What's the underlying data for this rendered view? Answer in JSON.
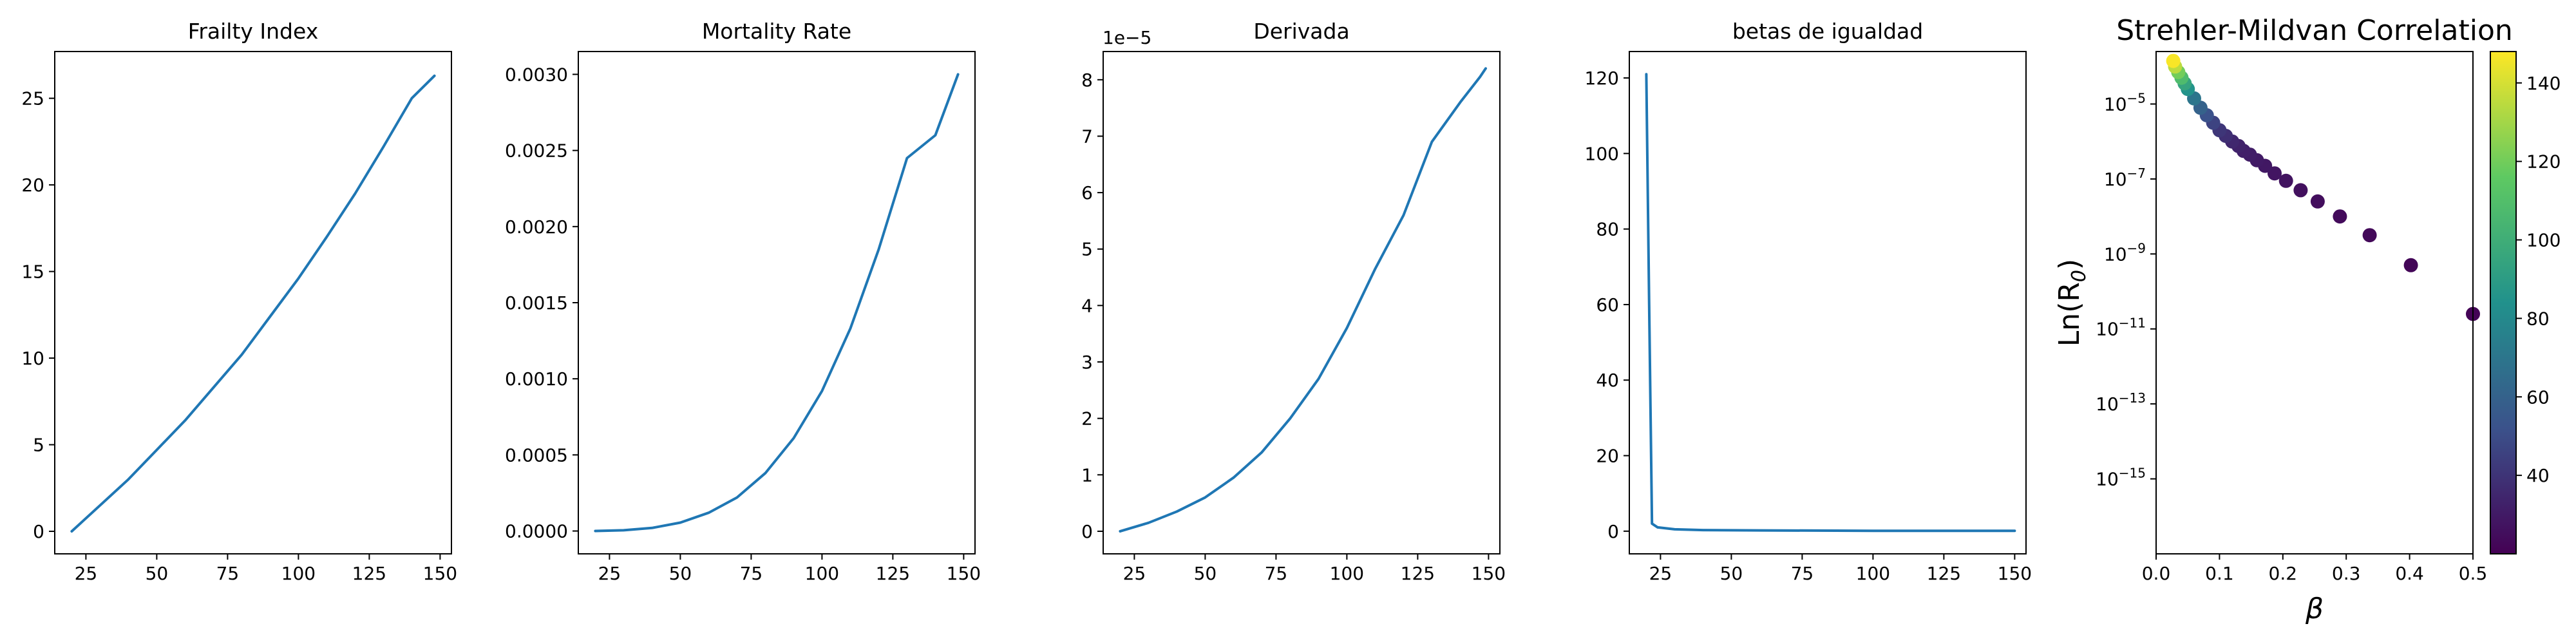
{
  "colors": {
    "line": "#1f77b4",
    "axis": "#000000",
    "background": "#ffffff"
  },
  "chart_data": [
    {
      "type": "line",
      "title": "Frailty Index",
      "xlim": [
        14,
        154
      ],
      "ylim": [
        -1.3,
        27.7
      ],
      "xticks": [
        25,
        50,
        75,
        100,
        125,
        150
      ],
      "yticks": [
        0,
        5,
        10,
        15,
        20,
        25
      ],
      "ytick_labels": [
        "0",
        "5",
        "10",
        "15",
        "20",
        "25"
      ],
      "series": [
        {
          "x": [
            20,
            30,
            40,
            50,
            60,
            70,
            80,
            90,
            100,
            110,
            120,
            130,
            140,
            148
          ],
          "y": [
            0,
            1.5,
            3.0,
            4.7,
            6.4,
            8.3,
            10.2,
            12.4,
            14.6,
            17.0,
            19.5,
            22.2,
            25.0,
            26.3
          ]
        }
      ]
    },
    {
      "type": "line",
      "title": "Mortality Rate",
      "xlim": [
        14,
        154
      ],
      "ylim": [
        -0.00015,
        0.00315
      ],
      "xticks": [
        25,
        50,
        75,
        100,
        125,
        150
      ],
      "yticks": [
        0,
        0.0005,
        0.001,
        0.0015,
        0.002,
        0.0025,
        0.003
      ],
      "ytick_labels": [
        "0.0000",
        "0.0005",
        "0.0010",
        "0.0015",
        "0.0020",
        "0.0025",
        "0.0030"
      ],
      "series": [
        {
          "x": [
            20,
            30,
            40,
            50,
            60,
            70,
            80,
            90,
            100,
            110,
            120,
            130,
            140,
            148
          ],
          "y": [
            0,
            5e-06,
            2e-05,
            5.5e-05,
            0.00012,
            0.00022,
            0.00038,
            0.00061,
            0.00092,
            0.00133,
            0.00185,
            0.00245,
            0.0026,
            0.003
          ]
        }
      ]
    },
    {
      "type": "line",
      "title": "Derivada",
      "offset_label": "1e−5",
      "xlim": [
        14,
        154
      ],
      "ylim": [
        -0.4,
        8.5
      ],
      "xticks": [
        25,
        50,
        75,
        100,
        125,
        150
      ],
      "yticks": [
        0,
        1,
        2,
        3,
        4,
        5,
        6,
        7,
        8
      ],
      "ytick_labels": [
        "0",
        "1",
        "2",
        "3",
        "4",
        "5",
        "6",
        "7",
        "8"
      ],
      "series": [
        {
          "x": [
            20,
            30,
            40,
            50,
            60,
            70,
            80,
            90,
            100,
            110,
            120,
            130,
            140,
            147,
            149
          ],
          "y": [
            0,
            0.15,
            0.35,
            0.6,
            0.95,
            1.4,
            2.0,
            2.7,
            3.6,
            4.65,
            5.6,
            6.9,
            7.6,
            8.05,
            8.2
          ]
        }
      ]
    },
    {
      "type": "line",
      "title": "betas de igualdad",
      "xlim": [
        14,
        154
      ],
      "ylim": [
        -6,
        127
      ],
      "xticks": [
        25,
        50,
        75,
        100,
        125,
        150
      ],
      "yticks": [
        0,
        20,
        40,
        60,
        80,
        100,
        120
      ],
      "ytick_labels": [
        "0",
        "20",
        "40",
        "60",
        "80",
        "100",
        "120"
      ],
      "series": [
        {
          "x": [
            20,
            21,
            22,
            24,
            30,
            40,
            60,
            100,
            150
          ],
          "y": [
            121,
            60,
            2,
            1,
            0.5,
            0.3,
            0.2,
            0.1,
            0.1
          ]
        }
      ]
    },
    {
      "type": "scatter",
      "title": "Strehler-Mildvan Correlation",
      "xlabel": "β",
      "ylabel_base": "Ln(R",
      "ylabel_sub": "0",
      "ylabel_end": ")",
      "xlim": [
        0,
        0.5
      ],
      "ylog": true,
      "ylim_exp": [
        -17,
        -3.6
      ],
      "xticks": [
        0,
        0.1,
        0.2,
        0.3,
        0.4,
        0.5
      ],
      "xtick_labels": [
        "0.0",
        "0.1",
        "0.2",
        "0.3",
        "0.4",
        "0.5"
      ],
      "ytick_exponents": [
        -15,
        -13,
        -11,
        -9,
        -7,
        -5
      ],
      "ytick_base": "10",
      "colorbar": {
        "label": "",
        "range": [
          20,
          148
        ],
        "ticks": [
          40,
          60,
          80,
          100,
          120,
          140
        ],
        "colormap": "viridis"
      },
      "points": [
        {
          "x": 0.5,
          "y_exp": -10.6,
          "c": 21
        },
        {
          "x": 0.402,
          "y_exp": -9.3,
          "c": 22
        },
        {
          "x": 0.337,
          "y_exp": -8.5,
          "c": 23
        },
        {
          "x": 0.29,
          "y_exp": -8.0,
          "c": 24
        },
        {
          "x": 0.255,
          "y_exp": -7.6,
          "c": 25
        },
        {
          "x": 0.228,
          "y_exp": -7.3,
          "c": 26
        },
        {
          "x": 0.205,
          "y_exp": -7.05,
          "c": 27
        },
        {
          "x": 0.187,
          "y_exp": -6.85,
          "c": 28
        },
        {
          "x": 0.172,
          "y_exp": -6.65,
          "c": 29
        },
        {
          "x": 0.159,
          "y_exp": -6.5,
          "c": 30
        },
        {
          "x": 0.148,
          "y_exp": -6.35,
          "c": 31
        },
        {
          "x": 0.138,
          "y_exp": -6.25,
          "c": 32
        },
        {
          "x": 0.13,
          "y_exp": -6.12,
          "c": 33
        },
        {
          "x": 0.12,
          "y_exp": -6.0,
          "c": 35
        },
        {
          "x": 0.11,
          "y_exp": -5.85,
          "c": 38
        },
        {
          "x": 0.1,
          "y_exp": -5.7,
          "c": 41
        },
        {
          "x": 0.09,
          "y_exp": -5.5,
          "c": 46
        },
        {
          "x": 0.08,
          "y_exp": -5.3,
          "c": 52
        },
        {
          "x": 0.07,
          "y_exp": -5.1,
          "c": 60
        },
        {
          "x": 0.06,
          "y_exp": -4.85,
          "c": 70
        },
        {
          "x": 0.05,
          "y_exp": -4.6,
          "c": 85
        },
        {
          "x": 0.045,
          "y_exp": -4.45,
          "c": 95
        },
        {
          "x": 0.04,
          "y_exp": -4.3,
          "c": 108
        },
        {
          "x": 0.035,
          "y_exp": -4.15,
          "c": 120
        },
        {
          "x": 0.03,
          "y_exp": -4.0,
          "c": 135
        },
        {
          "x": 0.027,
          "y_exp": -3.85,
          "c": 147
        }
      ]
    }
  ]
}
